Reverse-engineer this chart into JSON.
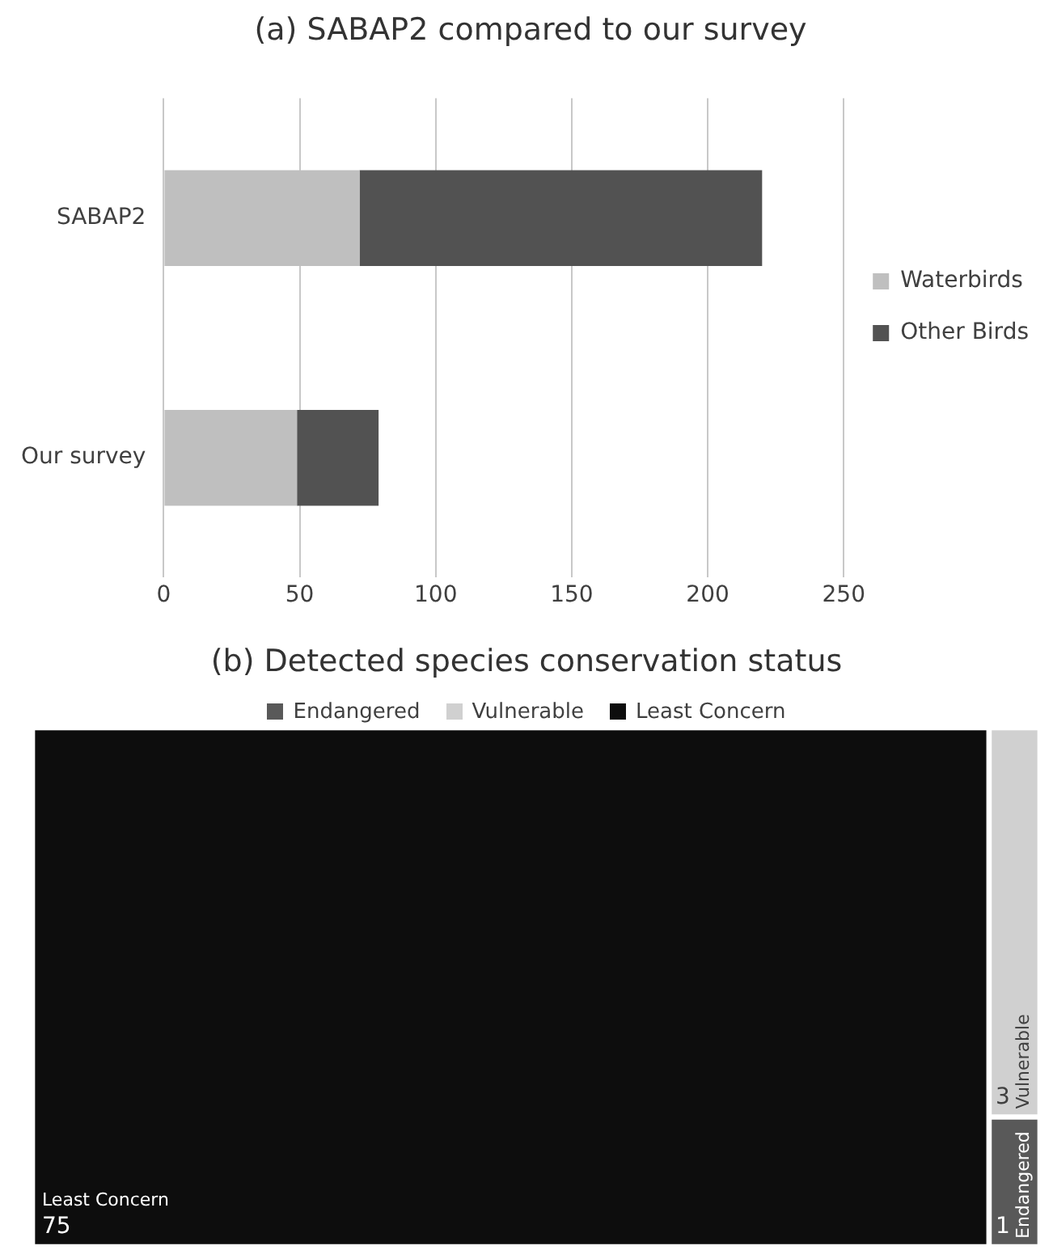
{
  "chart_data": [
    {
      "type": "bar",
      "title": "(a) SABAP2 compared to our survey",
      "orientation": "horizontal",
      "stacked": true,
      "categories": [
        "SABAP2",
        "Our survey"
      ],
      "series": [
        {
          "name": "Waterbirds",
          "color": "#bfbfbf",
          "values": [
            72,
            49
          ]
        },
        {
          "name": "Other Birds",
          "color": "#525252",
          "values": [
            148,
            30
          ]
        }
      ],
      "xlim": [
        0,
        250
      ],
      "xticks": [
        0,
        50,
        100,
        150,
        200,
        250
      ],
      "grid": "x",
      "legend": "right"
    },
    {
      "type": "other",
      "title": "(b) Detected species conservation status",
      "categories": [
        "Endangered",
        "Vulnerable",
        "Least Concern"
      ],
      "values": [
        1,
        3,
        75
      ],
      "colors": [
        "#595959",
        "#d0d0d0",
        "#0d0d0d"
      ],
      "data_labels": true
    }
  ]
}
